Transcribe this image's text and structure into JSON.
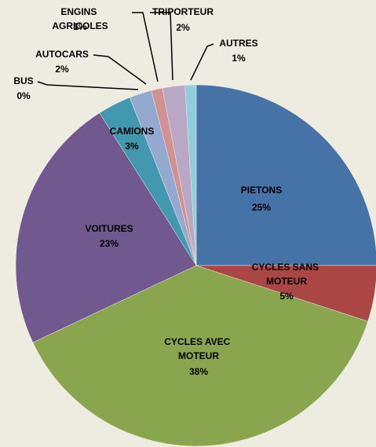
{
  "chart_data": {
    "type": "pie",
    "categories": [
      "PIETONS",
      "CYCLES SANS MOTEUR",
      "CYCLES AVEC MOTEUR",
      "VOITURES",
      "CAMIONS",
      "BUS",
      "AUTOCARS",
      "ENGINS AGRICOLES",
      "TRIPORTEUR",
      "AUTRES"
    ],
    "values": [
      25,
      5,
      38,
      23,
      3,
      0,
      2,
      1,
      2,
      1
    ],
    "value_labels": [
      "25%",
      "5%",
      "38%",
      "23%",
      "3%",
      "0%",
      "2%",
      "1%",
      "2%",
      "1%"
    ],
    "colors": [
      "#4572a7",
      "#aa4643",
      "#89a54e",
      "#71588f",
      "#4198af",
      "#db843d",
      "#93a9cf",
      "#d19392",
      "#b9a7c6",
      "#92cddc"
    ]
  }
}
